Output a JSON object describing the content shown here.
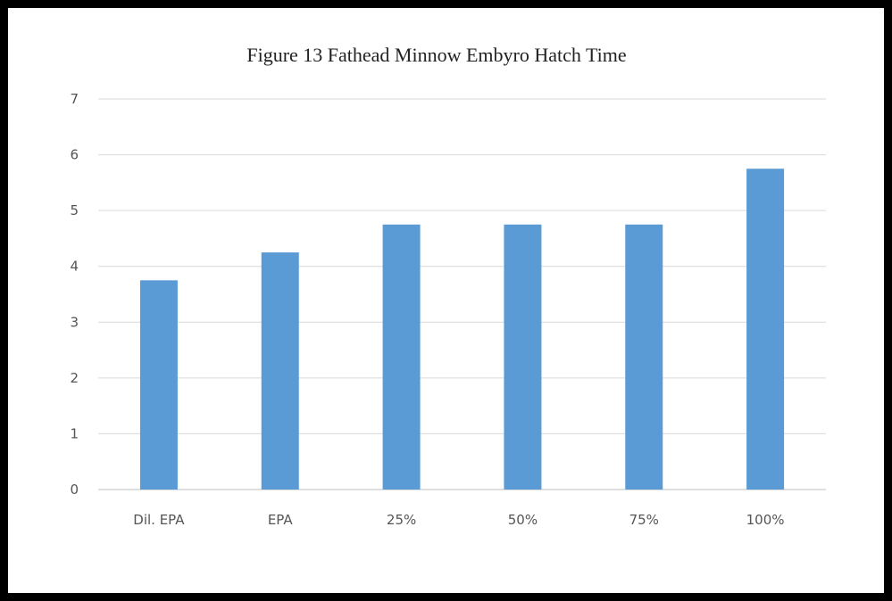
{
  "chart_data": {
    "type": "bar",
    "title": "Figure 13 Fathead Minnow Embyro Hatch Time",
    "categories": [
      "Dil. EPA",
      "EPA",
      "25%",
      "50%",
      "75%",
      "100%"
    ],
    "series": [
      {
        "values": [
          3.75,
          4.25,
          4.75,
          4.75,
          4.75,
          5.75
        ]
      }
    ],
    "xlabel": "",
    "ylabel": "",
    "ylim": [
      0,
      7
    ],
    "yticks": [
      "0",
      "1",
      "2",
      "3",
      "4",
      "5",
      "6",
      "7"
    ],
    "grid": true,
    "legend": "none",
    "bar_color": "#5b9bd5"
  }
}
